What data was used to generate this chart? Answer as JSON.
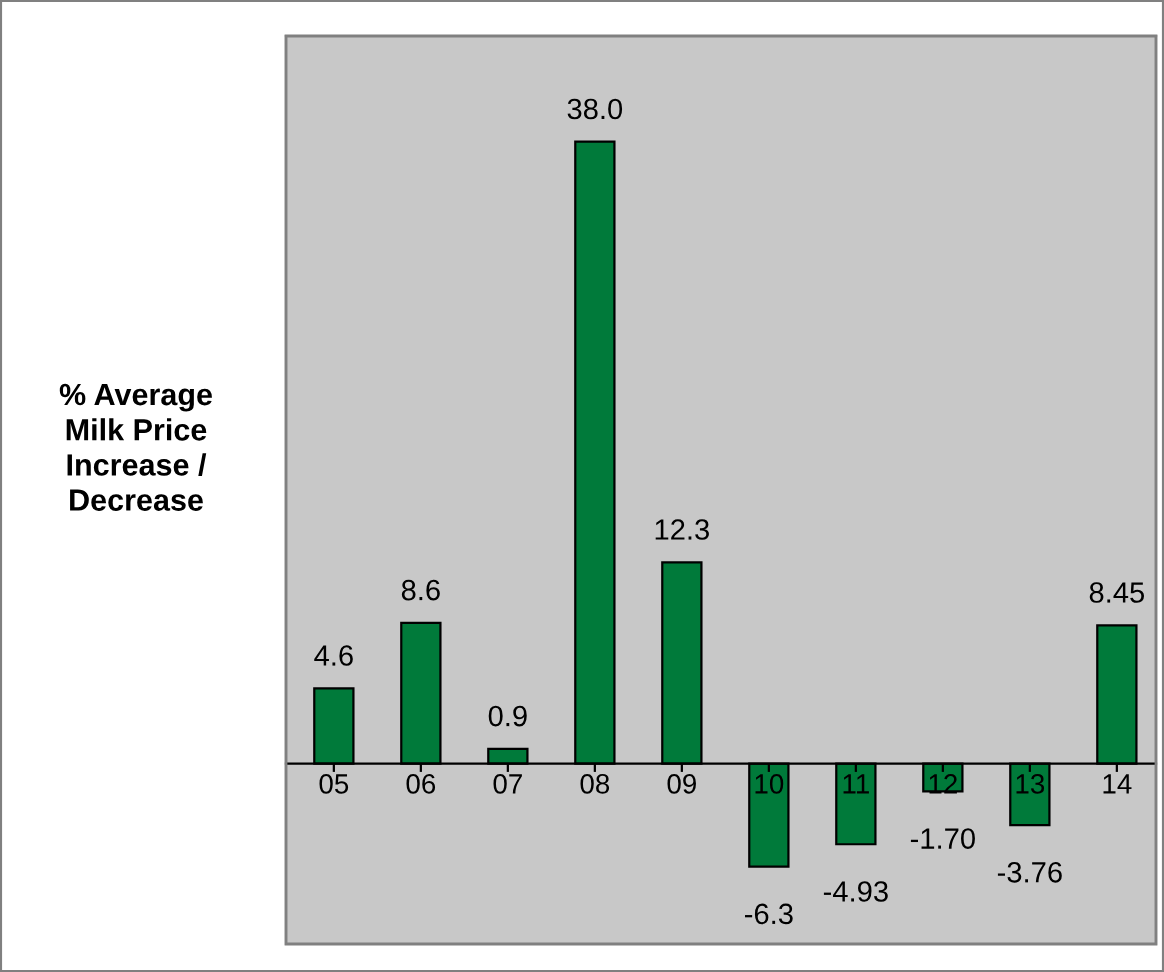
{
  "chart_data": {
    "type": "bar",
    "ylabel": "% Average\nMilk Price\nIncrease /\nDecrease",
    "categories": [
      "05",
      "06",
      "07",
      "08",
      "09",
      "10",
      "11",
      "12",
      "13",
      "14"
    ],
    "values": [
      4.6,
      8.6,
      0.9,
      38.0,
      12.3,
      -6.3,
      -4.93,
      -1.7,
      -3.76,
      8.45
    ],
    "value_labels": [
      "4.6",
      "8.6",
      "0.9",
      "38.0",
      "12.3",
      "-6.3",
      "-4.93",
      "-1.70",
      "-3.76",
      "8.45"
    ],
    "color": "#007a3a",
    "grid": false
  }
}
